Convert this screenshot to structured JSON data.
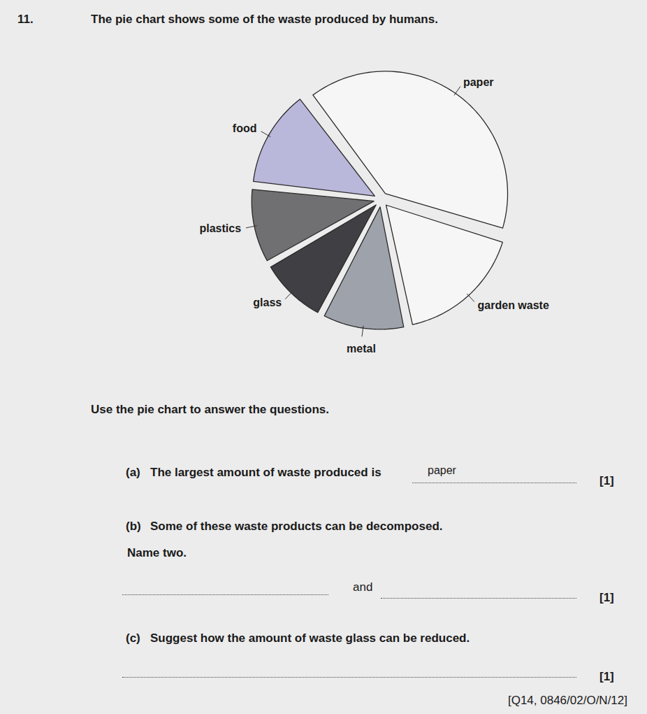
{
  "question": {
    "number": "11.",
    "stem": "The pie chart shows some of the waste produced by humans."
  },
  "chart_data": {
    "type": "pie",
    "categories": [
      "paper",
      "garden waste",
      "metal",
      "glass",
      "plastics",
      "food"
    ],
    "values": [
      40,
      17,
      11,
      9,
      10,
      13
    ],
    "colors": [
      "#f6f6f6",
      "#f6f6f6",
      "#9ea2aa",
      "#3f3f44",
      "#707072",
      "#b9b7da"
    ]
  },
  "instruction": "Use the pie chart to answer the questions.",
  "parts": [
    {
      "label": "(a)",
      "text": "The largest amount of waste produced is",
      "answer": "paper",
      "marks": "[1]"
    },
    {
      "label": "(b)",
      "text": "Some of these waste products can be decomposed.",
      "subtext": "Name two.",
      "joiner": "and",
      "marks": "[1]"
    },
    {
      "label": "(c)",
      "text": "Suggest how the amount of waste glass can be reduced.",
      "marks": "[1]"
    }
  ],
  "reference": "[Q14, 0846/02/O/N/12]"
}
